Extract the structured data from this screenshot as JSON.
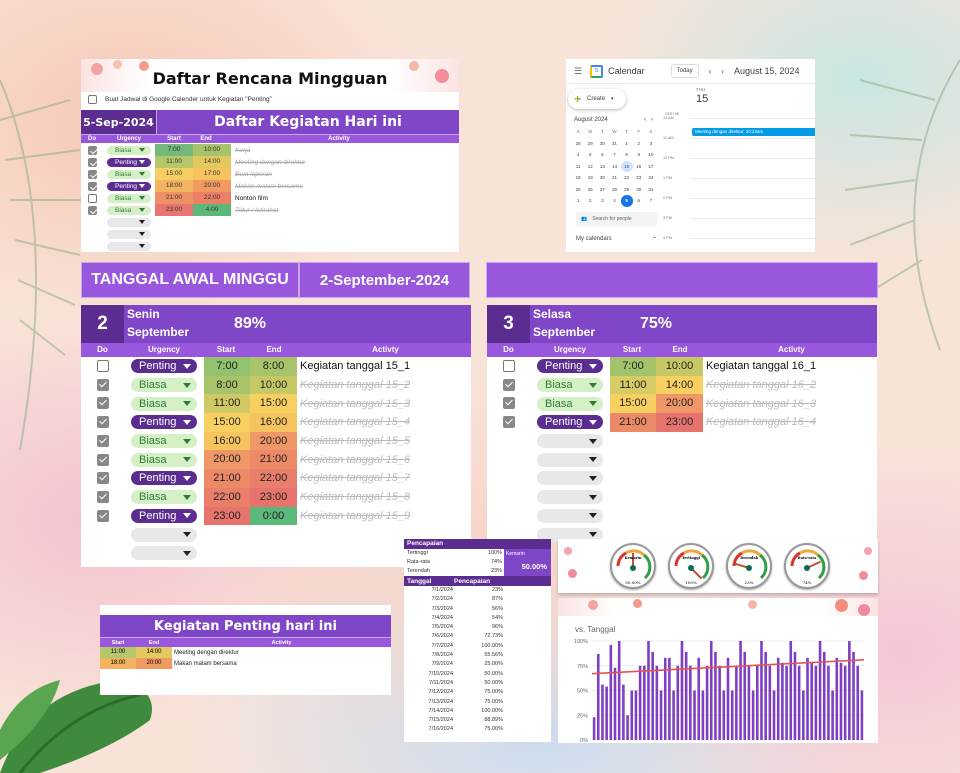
{
  "weekly_planner": {
    "title": "Daftar Rencana Mingguan",
    "gcal_checkbox_label": "Buat Jadwal di Google Calender untuk Kegiatan \"Penting\"",
    "date": "5-Sep-2024",
    "section_title": "Daftar Kegiatan Hari ini",
    "headers": {
      "do": "Do",
      "urgency": "Urgency",
      "start": "Start",
      "end": "End",
      "activity": "Activity"
    },
    "rows": [
      {
        "done": true,
        "urgency": "Biasa",
        "start": "7:00",
        "end": "10:00",
        "activity": "Kerja",
        "start_color": "#72b97a",
        "end_color": "#a8c46a"
      },
      {
        "done": true,
        "urgency": "Penting",
        "start": "11:00",
        "end": "14:00",
        "activity": "Meeting dengan direktur",
        "start_color": "#b5c76b",
        "end_color": "#e3c85f"
      },
      {
        "done": true,
        "urgency": "Biasa",
        "start": "15:00",
        "end": "17:00",
        "activity": "Buat laporan",
        "start_color": "#f6cf62",
        "end_color": "#f6c35f"
      },
      {
        "done": true,
        "urgency": "Penting",
        "start": "18:00",
        "end": "20:00",
        "activity": "Makan malam bersama",
        "start_color": "#f4b360",
        "end_color": "#f09a62"
      },
      {
        "done": false,
        "urgency": "Biasa",
        "start": "21:00",
        "end": "22:00",
        "activity": "Nonton film",
        "start_color": "#ef9165",
        "end_color": "#eb8067"
      },
      {
        "done": true,
        "urgency": "Biasa",
        "start": "23:00",
        "end": "4:00",
        "activity": "Tidur / Istirahat",
        "start_color": "#e77670",
        "end_color": "#5bb877"
      }
    ],
    "empty_rows": 3
  },
  "google_calendar": {
    "app_name": "Calendar",
    "today_button": "Today",
    "current_date": "August 15, 2024",
    "create_button": "Create",
    "mini_month": "August 2024",
    "weekday_initials": [
      "S",
      "M",
      "T",
      "W",
      "T",
      "F",
      "S"
    ],
    "weeks": [
      [
        "28",
        "29",
        "30",
        "31",
        "1",
        "2",
        "3"
      ],
      [
        "4",
        "5",
        "6",
        "7",
        "8",
        "9",
        "10"
      ],
      [
        "11",
        "12",
        "13",
        "14",
        "15",
        "16",
        "17"
      ],
      [
        "18",
        "19",
        "20",
        "21",
        "22",
        "23",
        "24"
      ],
      [
        "25",
        "26",
        "27",
        "28",
        "29",
        "30",
        "31"
      ],
      [
        "1",
        "2",
        "3",
        "4",
        "5",
        "6",
        "7"
      ]
    ],
    "selected_day": "15",
    "today_day": "5",
    "search_people_placeholder": "Search for people",
    "my_calendars": "My calendars",
    "day_label": "THU",
    "day_number": "15",
    "timezone": "GMT+08",
    "hours": [
      "10 AM",
      "11 AM",
      "12 PM",
      "1 PM",
      "2 PM",
      "3 PM",
      "4 PM"
    ],
    "event": "Meeting dengan direktur, 10:22am",
    "event_color": "#039be5"
  },
  "week": {
    "start_label": "TANGGAL AWAL MINGGU",
    "start_date": "2-September-2024",
    "days": [
      {
        "day_num": "2",
        "day_name": "Senin",
        "month": "September",
        "percent": "89%",
        "headers": {
          "do": "Do",
          "urgency": "Urgency",
          "start": "Start",
          "end": "End",
          "activity": "Activty"
        },
        "rows": [
          {
            "done": false,
            "urgency": "Penting",
            "start": "7:00",
            "end": "8:00",
            "activity": "Kegiatan tanggal 15_1",
            "start_color": "#93c26e",
            "end_color": "#a8c46a"
          },
          {
            "done": true,
            "urgency": "Biasa",
            "start": "8:00",
            "end": "10:00",
            "activity": "Kegiatan tanggal 15_2",
            "start_color": "#a8c46a",
            "end_color": "#c6c866"
          },
          {
            "done": true,
            "urgency": "Biasa",
            "start": "11:00",
            "end": "15:00",
            "activity": "Kegiatan tanggal 15_3",
            "start_color": "#cfca64",
            "end_color": "#f8cf61"
          },
          {
            "done": true,
            "urgency": "Penting",
            "start": "15:00",
            "end": "16:00",
            "activity": "Kegiatan tanggal 15_4",
            "start_color": "#f8cf61",
            "end_color": "#f6c45f"
          },
          {
            "done": true,
            "urgency": "Biasa",
            "start": "16:00",
            "end": "20:00",
            "activity": "Kegiatan tanggal 15_5",
            "start_color": "#f6c45f",
            "end_color": "#ef9767"
          },
          {
            "done": true,
            "urgency": "Biasa",
            "start": "20:00",
            "end": "21:00",
            "activity": "Kegiatan tanggal 15_6",
            "start_color": "#ef9767",
            "end_color": "#ec8a68"
          },
          {
            "done": true,
            "urgency": "Penting",
            "start": "21:00",
            "end": "22:00",
            "activity": "Kegiatan tanggal 15_7",
            "start_color": "#ec8a68",
            "end_color": "#e97f6b"
          },
          {
            "done": true,
            "urgency": "Biasa",
            "start": "22:00",
            "end": "23:00",
            "activity": "Kegiatan tanggal 15_8",
            "start_color": "#e97f6b",
            "end_color": "#e6746d"
          },
          {
            "done": true,
            "urgency": "Penting",
            "start": "23:00",
            "end": "0:00",
            "activity": "Kegiatan tanggal 15_9",
            "start_color": "#e6746d",
            "end_color": "#5bb87a"
          }
        ],
        "empty_rows": 2
      },
      {
        "day_num": "3",
        "day_name": "Selasa",
        "month": "September",
        "percent": "75%",
        "headers": {
          "do": "Do",
          "urgency": "Urgency",
          "start": "Start",
          "end": "End",
          "activity": "Activty"
        },
        "rows": [
          {
            "done": false,
            "urgency": "Penting",
            "start": "7:00",
            "end": "10:00",
            "activity": "Kegiatan tanggal 16_1",
            "start_color": "#a3c36b",
            "end_color": "#c6c866"
          },
          {
            "done": true,
            "urgency": "Biasa",
            "start": "11:00",
            "end": "14:00",
            "activity": "Kegiatan tanggal 16_2",
            "start_color": "#d6cb64",
            "end_color": "#f8cf61"
          },
          {
            "done": true,
            "urgency": "Biasa",
            "start": "15:00",
            "end": "20:00",
            "activity": "Kegiatan tanggal 16_3",
            "start_color": "#f8cf61",
            "end_color": "#ef9767"
          },
          {
            "done": true,
            "urgency": "Penting",
            "start": "21:00",
            "end": "23:00",
            "activity": "Kegiatan tanggal 16_4",
            "start_color": "#ec8a68",
            "end_color": "#e6746d"
          }
        ],
        "empty_rows": 6
      }
    ]
  },
  "important_today": {
    "title": "Kegiatan Penting hari ini",
    "headers": {
      "start": "Start",
      "end": "End",
      "activity": "Activity"
    },
    "rows": [
      {
        "start": "11:00",
        "end": "14:00",
        "activity": "Meeting dengan direktur",
        "start_color": "#b5c76b",
        "end_color": "#e3c85f"
      },
      {
        "start": "18:00",
        "end": "20:00",
        "activity": "Makan malam bersama",
        "start_color": "#f4b360",
        "end_color": "#f09a62"
      }
    ]
  },
  "achievement": {
    "title": "Pencapaian",
    "stats": [
      {
        "label": "Tertinggi",
        "value": "100%"
      },
      {
        "label": "Rata-rata",
        "value": "74%"
      },
      {
        "label": "Terendah",
        "value": "23%"
      }
    ],
    "yesterday_label": "Kemarin",
    "yesterday_value": "50.00%",
    "table_headers": {
      "date": "Tanggal",
      "value": "Pencapaian"
    },
    "table_rows": [
      {
        "date": "7/1/2024",
        "value": "23%"
      },
      {
        "date": "7/2/2024",
        "value": "87%"
      },
      {
        "date": "7/3/2024",
        "value": "56%"
      },
      {
        "date": "7/4/2024",
        "value": "54%"
      },
      {
        "date": "7/5/2024",
        "value": "96%"
      },
      {
        "date": "7/6/2024",
        "value": "72.73%"
      },
      {
        "date": "7/7/2024",
        "value": "100.00%"
      },
      {
        "date": "7/8/2024",
        "value": "55.56%"
      },
      {
        "date": "7/9/2024",
        "value": "25.00%"
      },
      {
        "date": "7/10/2024",
        "value": "50.00%"
      },
      {
        "date": "7/11/2024",
        "value": "50.00%"
      },
      {
        "date": "7/12/2024",
        "value": "75.00%"
      },
      {
        "date": "7/13/2024",
        "value": "75.00%"
      },
      {
        "date": "7/14/2024",
        "value": "100.00%"
      },
      {
        "date": "7/15/2024",
        "value": "88.89%"
      },
      {
        "date": "7/16/2024",
        "value": "75.00%"
      }
    ]
  },
  "gauges": [
    {
      "label": "Kemarin",
      "value": "50.00%",
      "pct": 50
    },
    {
      "label": "Tertinggi",
      "value": "100%",
      "pct": 100
    },
    {
      "label": "Terendah",
      "value": "23%",
      "pct": 23
    },
    {
      "label": "Rata-rata",
      "value": "74%",
      "pct": 74
    }
  ],
  "chart_data": {
    "type": "bar",
    "title": "vs. Tanggal",
    "xlabel": "Tanggal",
    "ylabel": "Pencapaian",
    "ylim": [
      0,
      100
    ],
    "yticks": [
      "0%",
      "25%",
      "50%",
      "75%",
      "100%"
    ],
    "grid": true,
    "bar_color": "#7e3fc4",
    "trendline": {
      "color": "#e0554f",
      "start": 67,
      "end": 81
    },
    "values": [
      23,
      87,
      56,
      54,
      96,
      73,
      100,
      56,
      25,
      50,
      50,
      75,
      75,
      100,
      89,
      75,
      50,
      83,
      83,
      50,
      75,
      100,
      89,
      75,
      50,
      83,
      50,
      75,
      100,
      89,
      75,
      50,
      83,
      50,
      75,
      100,
      89,
      75,
      50,
      75,
      100,
      89,
      75,
      50,
      83,
      78,
      75,
      100,
      89,
      75,
      50,
      83,
      78,
      75,
      100,
      89,
      75,
      50,
      83,
      78,
      75,
      100,
      89,
      75,
      50
    ]
  }
}
